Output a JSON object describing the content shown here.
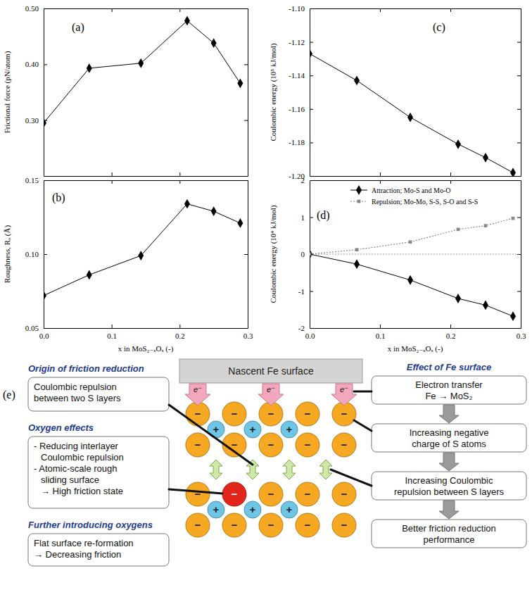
{
  "chart_data": [
    {
      "type": "line",
      "annotations": [
        "(a)"
      ],
      "y_label": "Frictional force (pN/atom)",
      "x": [
        0,
        0.067,
        0.143,
        0.211,
        0.25,
        0.289
      ],
      "values": [
        0.295,
        0.393,
        0.402,
        0.478,
        0.438,
        0.366
      ],
      "color": "#000000",
      "marker": "diamond",
      "line_style": "solid",
      "xlim": [
        0,
        0.3
      ],
      "xticks": [
        {
          "value": 0,
          "label": "0.0"
        },
        0.1,
        0.2,
        0.3
      ],
      "ylim": [
        0.2,
        0.5
      ],
      "yticks": [
        {
          "value": 0.3,
          "label": "0.30"
        },
        {
          "value": 0.4,
          "label": "0.40"
        },
        {
          "value": 0.5,
          "label": "0.50"
        }
      ],
      "tick_labels": "y"
    },
    {
      "type": "line",
      "annotations": [
        "(b)"
      ],
      "y_label": "Roughness, Rₐ (Å)",
      "x_label": "x in MoS₂₋ₓOₓ (-)",
      "x": [
        0,
        0.067,
        0.143,
        0.211,
        0.25,
        0.289
      ],
      "values": [
        0.072,
        0.086,
        0.099,
        0.134,
        0.129,
        0.121
      ],
      "color": "#000000",
      "marker": "diamond",
      "line_style": "solid",
      "xlim": [
        0,
        0.3
      ],
      "xticks": [
        {
          "value": 0,
          "label": "0.0"
        },
        0.1,
        0.2,
        0.3
      ],
      "ylim": [
        0.05,
        0.15
      ],
      "yticks": [
        0.05,
        {
          "value": 0.1,
          "label": "0.10"
        },
        0.15
      ]
    },
    {
      "type": "line",
      "annotations": [
        "(c)"
      ],
      "y_label": "Coulombic energy (10⁵ kJ/mol)",
      "x": [
        0,
        0.067,
        0.143,
        0.211,
        0.25,
        0.289
      ],
      "values": [
        -1.127,
        -1.143,
        -1.165,
        -1.181,
        -1.189,
        -1.198
      ],
      "color": "#000000",
      "marker": "diamond",
      "line_style": "solid",
      "xlim": [
        0,
        0.3
      ],
      "xticks": [
        {
          "value": 0,
          "label": "0.0"
        },
        0.1,
        0.2,
        0.3
      ],
      "ylim": [
        -1.2,
        -1.1
      ],
      "yticks": [
        {
          "value": -1.2,
          "label": "-1.20"
        },
        {
          "value": -1.18,
          "label": "-1.18"
        },
        {
          "value": -1.16,
          "label": "-1.16"
        },
        {
          "value": -1.14,
          "label": "-1.14"
        },
        {
          "value": -1.12,
          "label": "-1.12"
        },
        {
          "value": -1.1,
          "label": "-1.10"
        }
      ],
      "tick_labels": "y"
    },
    {
      "type": "line",
      "annotations": [
        "(d)"
      ],
      "y_label": "Coulombic energy (10⁴ kJ/mol)",
      "x_label": "x in MoS₂₋ₓOₓ (-)",
      "x": [
        0,
        0.067,
        0.143,
        0.211,
        0.25,
        0.289
      ],
      "series": [
        {
          "name": "Attraction; Mo-S and Mo-O",
          "color": "#000000",
          "marker": "diamond",
          "line_style": "solid",
          "values": [
            0,
            -0.27,
            -0.7,
            -1.2,
            -1.38,
            -1.68
          ]
        },
        {
          "name": "Repulsion; Mo-Mo, S-S, S-O and S-S",
          "color": "#888888",
          "marker": "square",
          "line_style": "dotted",
          "values": [
            0,
            0.12,
            0.33,
            0.67,
            0.77,
            0.97
          ]
        }
      ],
      "xlim": [
        0,
        0.3
      ],
      "xticks": [
        {
          "value": 0,
          "label": "0.0"
        },
        0.1,
        0.2,
        0.3
      ],
      "ylim": [
        -2,
        2
      ],
      "yticks": [
        -2,
        -1,
        0,
        1,
        2
      ],
      "hlines": [
        0
      ],
      "legend": "upper left"
    }
  ],
  "diagram": {
    "panel_label": "(e)",
    "fe_surface": "Nascent Fe surface",
    "electron": "e⁻",
    "left": [
      {
        "heading": "Origin of friction reduction",
        "lines": [
          "Coulombic repulsion",
          "between two S layers"
        ]
      },
      {
        "heading": "Oxygen effects",
        "lines": [
          "- Reducing interlayer",
          "Coulombic repulsion",
          "- Atomic-scale rough",
          "sliding surface",
          "→ High friction state"
        ]
      },
      {
        "heading": "Further introducing oxygens",
        "lines": [
          "Flat surface re-formation",
          "→ Decreasing friction"
        ]
      }
    ],
    "right": {
      "heading": "Effect of Fe surface",
      "boxes": [
        [
          "Electron transfer",
          "Fe → MoS₂"
        ],
        [
          "Increasing negative",
          "charge of S atoms"
        ],
        [
          "Increasing Coulombic",
          "repulsion between S layers"
        ],
        [
          "Better friction reduction",
          "performance"
        ]
      ]
    },
    "layers": [
      {
        "signs": [
          "−",
          "−",
          "−",
          "−",
          "−"
        ],
        "colors": [
          "#f7a823",
          "#f7a823",
          "#f7a823",
          "#f7a823",
          "#f7a823"
        ]
      },
      {
        "signs": [
          "+",
          "+",
          "+"
        ],
        "colors": [
          "#6ec6e6",
          "#6ec6e6",
          "#6ec6e6"
        ]
      },
      {
        "signs": [
          "−",
          "−",
          "−",
          "−",
          "−"
        ],
        "colors": [
          "#f7a823",
          "#f7a823",
          "#f7a823",
          "#f7a823",
          "#f7a823"
        ]
      },
      {
        "signs": [
          "−",
          "−",
          "−",
          "−",
          "−"
        ],
        "colors": [
          "#f7a823",
          "#e3261b",
          "#f7a823",
          "#f7a823",
          "#f7a823"
        ]
      },
      {
        "signs": [
          "+",
          "+",
          "+"
        ],
        "colors": [
          "#6ec6e6",
          "#6ec6e6",
          "#6ec6e6"
        ]
      },
      {
        "signs": [
          "−",
          "−",
          "−",
          "−",
          "−"
        ],
        "colors": [
          "#f7a823",
          "#f7a823",
          "#f7a823",
          "#f7a823",
          "#f7a823"
        ]
      }
    ]
  }
}
